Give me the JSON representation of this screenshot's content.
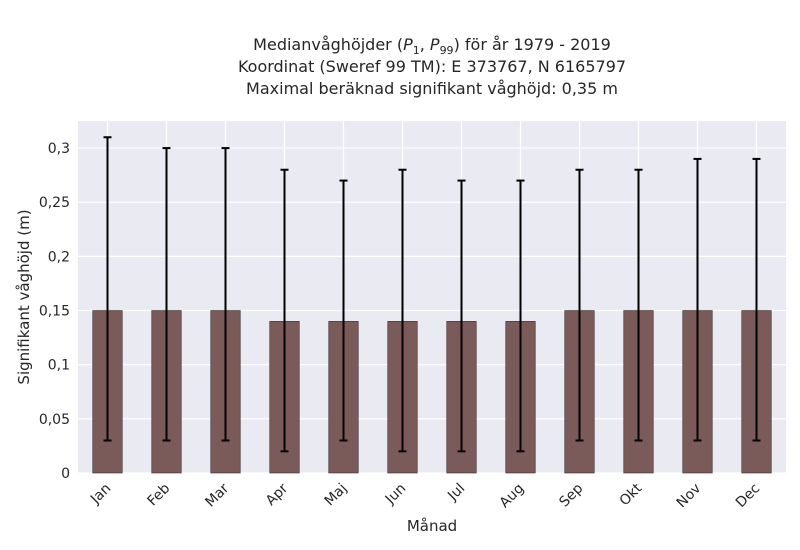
{
  "chart_data": {
    "type": "bar",
    "title_lines": [
      "Medianvåghöjder (P1, P99) för år 1979 - 2019",
      "Koordinat (Sweref 99 TM): E 373767, N 6165797",
      "Maximal beräknad signifikant våghöjd: 0,35 m"
    ],
    "xlabel": "Månad",
    "ylabel": "Signifikant våghöjd (m)",
    "categories": [
      "Jan",
      "Feb",
      "Mar",
      "Apr",
      "Maj",
      "Jun",
      "Jul",
      "Aug",
      "Sep",
      "Okt",
      "Nov",
      "Dec"
    ],
    "values": [
      0.15,
      0.15,
      0.15,
      0.14,
      0.14,
      0.14,
      0.14,
      0.14,
      0.15,
      0.15,
      0.15,
      0.15
    ],
    "error_low": [
      0.03,
      0.03,
      0.03,
      0.02,
      0.03,
      0.02,
      0.02,
      0.02,
      0.03,
      0.03,
      0.03,
      0.03
    ],
    "error_high": [
      0.31,
      0.3,
      0.3,
      0.28,
      0.27,
      0.28,
      0.27,
      0.27,
      0.28,
      0.28,
      0.29,
      0.29
    ],
    "ylim": [
      0,
      0.325
    ],
    "yticks": [
      0,
      0.05,
      0.1,
      0.15,
      0.2,
      0.25,
      0.3
    ],
    "ytick_labels": [
      "0",
      "0,05",
      "0,1",
      "0,15",
      "0,2",
      "0,25",
      "0,3"
    ],
    "grid": true,
    "bar_color": "#7b5a5a",
    "background_color": "#eaeaf2",
    "errorbar_color": "#000000"
  }
}
